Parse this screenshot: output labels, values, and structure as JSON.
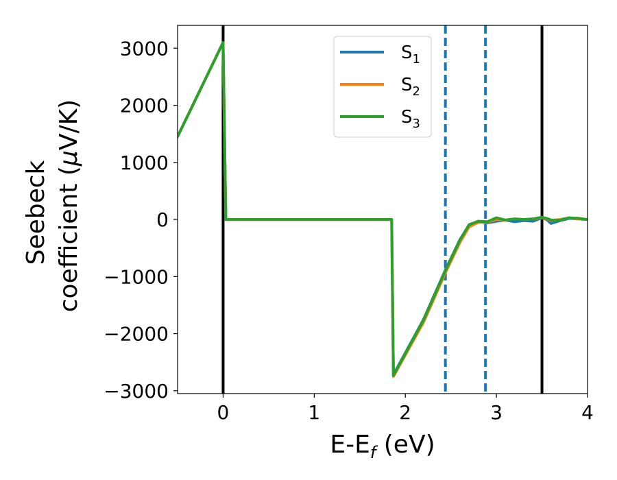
{
  "chart_data": {
    "type": "line",
    "xlabel": "E-E_f (eV)",
    "xlabel_parts": {
      "main": "E-E",
      "sub": "f",
      "rest": " (eV)"
    },
    "ylabel": "Seebeck coefficient (μV/K)",
    "ylabel_lines": [
      "Seebeck",
      "coefficient  (μV/K)"
    ],
    "ylabel_parts": {
      "prefix": "coefficient  (",
      "mu": "μ",
      "suffix": "V/K)"
    },
    "xlim": [
      -0.5,
      4.0
    ],
    "ylim": [
      -3050,
      3400
    ],
    "xticks": [
      0,
      1,
      2,
      3,
      4
    ],
    "xtick_labels": [
      "0",
      "1",
      "2",
      "3",
      "4"
    ],
    "yticks": [
      3000,
      2000,
      1000,
      0,
      -1000,
      -2000,
      -3000
    ],
    "ytick_labels": [
      "3000",
      "2000",
      "1000",
      "0",
      "−1000",
      "−2000",
      "−3000"
    ],
    "grid": false,
    "legend_position": "top-center",
    "legend": [
      {
        "base": "S",
        "sub": "1",
        "color": "#1f77b4"
      },
      {
        "base": "S",
        "sub": "2",
        "color": "#ff7f0e"
      },
      {
        "base": "S",
        "sub": "3",
        "color": "#2ca02c"
      }
    ],
    "series": [
      {
        "name": "S1",
        "color": "#1f77b4",
        "x": [
          -0.5,
          0.0,
          0.03,
          1.0,
          1.85,
          1.87,
          2.2,
          2.45,
          2.6,
          2.7,
          2.8,
          2.9,
          3.0,
          3.1,
          3.2,
          3.3,
          3.4,
          3.5,
          3.55,
          3.6,
          3.7,
          3.8,
          3.9,
          4.0
        ],
        "y": [
          1450,
          3100,
          0,
          0,
          0,
          -2720,
          -1750,
          -850,
          -350,
          -100,
          -40,
          -60,
          -30,
          -10,
          -40,
          -20,
          -30,
          30,
          0,
          -70,
          -20,
          20,
          10,
          0
        ]
      },
      {
        "name": "S2",
        "color": "#ff7f0e",
        "x": [
          -0.5,
          0.0,
          0.03,
          1.0,
          1.85,
          1.87,
          2.2,
          2.45,
          2.6,
          2.7,
          2.8,
          2.9,
          3.0,
          3.1,
          3.2,
          3.3,
          3.4,
          3.5,
          3.55,
          3.6,
          3.7,
          3.8,
          3.9,
          4.0
        ],
        "y": [
          1450,
          3100,
          0,
          0,
          0,
          -2750,
          -1800,
          -900,
          -400,
          -130,
          -50,
          -50,
          0,
          -10,
          10,
          0,
          10,
          30,
          10,
          -20,
          0,
          30,
          10,
          0
        ]
      },
      {
        "name": "S3",
        "color": "#2ca02c",
        "x": [
          -0.5,
          0.0,
          0.03,
          1.0,
          1.85,
          1.87,
          2.2,
          2.45,
          2.6,
          2.7,
          2.8,
          2.9,
          3.0,
          3.1,
          3.2,
          3.3,
          3.4,
          3.5,
          3.55,
          3.6,
          3.7,
          3.8,
          3.9,
          4.0
        ],
        "y": [
          1450,
          3100,
          0,
          0,
          0,
          -2730,
          -1760,
          -860,
          -360,
          -90,
          -30,
          -40,
          30,
          -10,
          10,
          0,
          10,
          40,
          20,
          -10,
          -10,
          30,
          20,
          0
        ]
      }
    ],
    "vlines": [
      {
        "x": 0.0,
        "style": "solid",
        "color": "#000000"
      },
      {
        "x": 3.5,
        "style": "solid",
        "color": "#000000"
      },
      {
        "x": 2.44,
        "style": "dashed",
        "color": "#1f77b4"
      },
      {
        "x": 2.88,
        "style": "dashed",
        "color": "#1f77b4"
      }
    ]
  }
}
